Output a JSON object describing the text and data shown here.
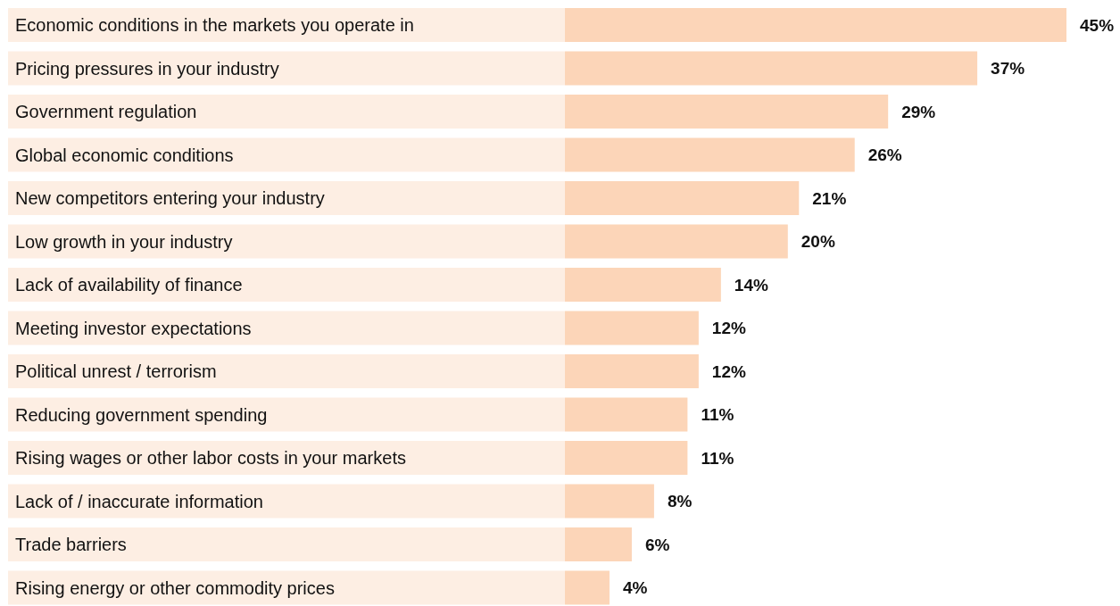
{
  "chart_data": {
    "type": "bar",
    "orientation": "horizontal",
    "categories": [
      "Economic conditions in the markets you operate in",
      "Pricing pressures in your industry",
      "Government regulation",
      "Global economic conditions",
      "New competitors entering your industry",
      "Low growth in your industry",
      "Lack of availability of finance",
      "Meeting investor expectations",
      "Political unrest / terrorism",
      "Reducing government spending",
      "Rising wages or other labor costs in your markets",
      "Lack of / inaccurate information",
      "Trade barriers",
      "Rising energy or other commodity prices"
    ],
    "values": [
      45,
      37,
      29,
      26,
      21,
      20,
      14,
      12,
      12,
      11,
      11,
      8,
      6,
      4
    ],
    "value_labels": [
      "45%",
      "37%",
      "29%",
      "26%",
      "21%",
      "20%",
      "14%",
      "12%",
      "12%",
      "11%",
      "11%",
      "8%",
      "6%",
      "4%"
    ],
    "color": "#fcd5b8"
  }
}
